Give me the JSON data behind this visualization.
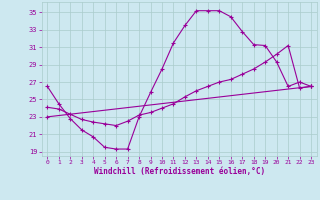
{
  "xlabel": "Windchill (Refroidissement éolien,°C)",
  "bg_color": "#cde8f0",
  "line_color": "#990099",
  "grid_color": "#aacccc",
  "xlim": [
    -0.5,
    23.5
  ],
  "ylim": [
    18.5,
    36.2
  ],
  "xticks": [
    0,
    1,
    2,
    3,
    4,
    5,
    6,
    7,
    8,
    9,
    10,
    11,
    12,
    13,
    14,
    15,
    16,
    17,
    18,
    19,
    20,
    21,
    22,
    23
  ],
  "yticks": [
    19,
    21,
    23,
    25,
    27,
    29,
    31,
    33,
    35
  ],
  "curve1_x": [
    0,
    1,
    2,
    3,
    4,
    5,
    6,
    7,
    8,
    9,
    10,
    11,
    12,
    13,
    14,
    15,
    16,
    17,
    18,
    19,
    20,
    21,
    22,
    23
  ],
  "curve1_y": [
    26.5,
    24.5,
    22.8,
    21.5,
    20.7,
    19.5,
    19.3,
    19.3,
    23.0,
    25.8,
    28.5,
    31.5,
    33.5,
    35.2,
    35.2,
    35.2,
    34.5,
    32.8,
    31.3,
    31.2,
    29.3,
    26.5,
    27.0,
    26.5
  ],
  "curve2_x": [
    0,
    1,
    2,
    3,
    4,
    5,
    6,
    7,
    8,
    9,
    10,
    11,
    12,
    13,
    14,
    15,
    16,
    17,
    18,
    19,
    20,
    21,
    22,
    23
  ],
  "curve2_y": [
    24.1,
    23.9,
    23.3,
    22.7,
    22.4,
    22.2,
    22.0,
    22.5,
    23.2,
    23.5,
    24.0,
    24.5,
    25.3,
    26.0,
    26.5,
    27.0,
    27.3,
    27.9,
    28.5,
    29.3,
    30.2,
    31.2,
    26.3,
    26.5
  ],
  "curve3_x": [
    0,
    23
  ],
  "curve3_y": [
    23.0,
    26.5
  ]
}
